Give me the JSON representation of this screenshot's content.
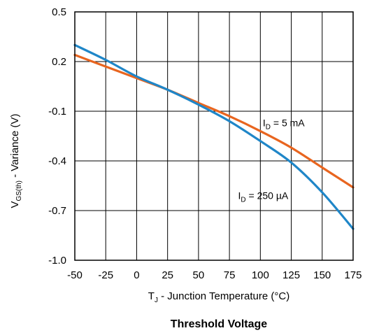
{
  "chart_data": {
    "type": "line",
    "title": "Threshold Voltage",
    "xlabel": {
      "main": "T",
      "sub": "J",
      "rest": " - Junction Temperature (°C)"
    },
    "ylabel": {
      "main": "V",
      "sub": "GS(th)",
      "rest": " - Variance (V)"
    },
    "xlim": [
      -50,
      175
    ],
    "ylim": [
      -1.0,
      0.5
    ],
    "xticks": [
      -50,
      -25,
      0,
      25,
      50,
      75,
      100,
      125,
      150,
      175
    ],
    "yticks": [
      0.5,
      0.2,
      -0.1,
      -0.4,
      -0.7,
      -1.0
    ],
    "xtick_labels": [
      "-50",
      "-25",
      "0",
      "25",
      "50",
      "75",
      "100",
      "125",
      "150",
      "175"
    ],
    "ytick_labels": [
      "0.5",
      "0.2",
      "-0.1",
      "-0.4",
      "-0.7",
      "-1.0"
    ],
    "grid": true,
    "series": [
      {
        "name": {
          "main": "I",
          "sub": "D",
          "rest": " = 5 mA"
        },
        "color": "#e8651f",
        "x": [
          -50,
          -25,
          0,
          25,
          50,
          75,
          100,
          125,
          150,
          175
        ],
        "y": [
          0.24,
          0.17,
          0.1,
          0.03,
          -0.05,
          -0.13,
          -0.22,
          -0.32,
          -0.44,
          -0.56
        ]
      },
      {
        "name": {
          "main": "I",
          "sub": "D",
          "rest": " = 250 µA"
        },
        "color": "#1f86c8",
        "x": [
          -50,
          -25,
          0,
          25,
          50,
          75,
          100,
          125,
          150,
          175
        ],
        "y": [
          0.3,
          0.21,
          0.11,
          0.03,
          -0.06,
          -0.16,
          -0.28,
          -0.41,
          -0.59,
          -0.81
        ]
      }
    ]
  }
}
